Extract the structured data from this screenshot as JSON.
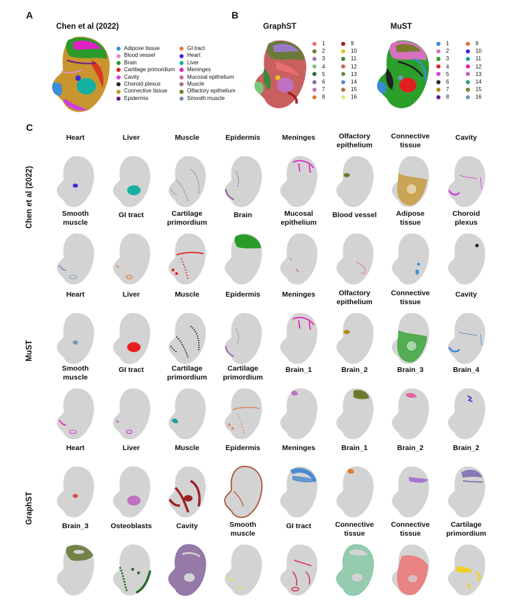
{
  "panels": {
    "a": {
      "letter": "A",
      "title": "Chen et al (2022)"
    },
    "b": {
      "letter": "B",
      "titles": [
        "GraphST",
        "MuST"
      ]
    },
    "c": {
      "letter": "C"
    }
  },
  "legend_a": {
    "col1": [
      {
        "label": "Adipose tissue",
        "color": "#3a8fd8"
      },
      {
        "label": "Blood vessel",
        "color": "#e58fc6"
      },
      {
        "label": "Brain",
        "color": "#2a9a2a"
      },
      {
        "label": "Cartilage primordium",
        "color": "#e02020"
      },
      {
        "label": "Cavity",
        "color": "#d040e0"
      },
      {
        "label": "Choroid plexus",
        "color": "#222222"
      },
      {
        "label": "Connective tissue",
        "color": "#c8952e"
      },
      {
        "label": "Epidermis",
        "color": "#6a1a8a"
      }
    ],
    "col2": [
      {
        "label": "GI tract",
        "color": "#e07a3a"
      },
      {
        "label": "Heart",
        "color": "#3a2ae0"
      },
      {
        "label": "Liver",
        "color": "#14b0a0"
      },
      {
        "label": "Meninges",
        "color": "#e020c0"
      },
      {
        "label": "Mucosal epithelium",
        "color": "#d060a8"
      },
      {
        "label": "Muscle",
        "color": "#a07080"
      },
      {
        "label": "Olfactory epithelium",
        "color": "#6a7a2a"
      },
      {
        "label": "Smooth muscle",
        "color": "#7a90b8"
      }
    ]
  },
  "legend_graphst": {
    "col1": [
      {
        "label": "1",
        "color": "#e87070"
      },
      {
        "label": "2",
        "color": "#6a7a3a"
      },
      {
        "label": "3",
        "color": "#9a7ac8"
      },
      {
        "label": "4",
        "color": "#7ac87a"
      },
      {
        "label": "5",
        "color": "#2a6a3a"
      },
      {
        "label": "6",
        "color": "#8a6aa0"
      },
      {
        "label": "7",
        "color": "#c070c0"
      },
      {
        "label": "8",
        "color": "#e07a2a"
      }
    ],
    "col2": [
      {
        "label": "9",
        "color": "#a02020"
      },
      {
        "label": "10",
        "color": "#e8c020"
      },
      {
        "label": "11",
        "color": "#3a8a3a"
      },
      {
        "label": "12",
        "color": "#c86060"
      },
      {
        "label": "13",
        "color": "#6a8a5a"
      },
      {
        "label": "14",
        "color": "#5a8ad0"
      },
      {
        "label": "15",
        "color": "#b07040"
      },
      {
        "label": "16",
        "color": "#e8e080"
      }
    ]
  },
  "legend_must": {
    "col1": [
      {
        "label": "1",
        "color": "#3a8ad8"
      },
      {
        "label": "2",
        "color": "#d870c0"
      },
      {
        "label": "3",
        "color": "#2aa02a"
      },
      {
        "label": "4",
        "color": "#e02020"
      },
      {
        "label": "5",
        "color": "#d040e0"
      },
      {
        "label": "6",
        "color": "#222222"
      },
      {
        "label": "7",
        "color": "#b08a20"
      },
      {
        "label": "8",
        "color": "#6a1a8a"
      }
    ],
    "col2": [
      {
        "label": "9",
        "color": "#e07030"
      },
      {
        "label": "10",
        "color": "#3a2ae0"
      },
      {
        "label": "11",
        "color": "#14a0a0"
      },
      {
        "label": "12",
        "color": "#e020b0"
      },
      {
        "label": "13",
        "color": "#c060b0"
      },
      {
        "label": "14",
        "color": "#2a9a8a"
      },
      {
        "label": "15",
        "color": "#7a7a2a"
      },
      {
        "label": "16",
        "color": "#7a90c0"
      }
    ]
  },
  "row_labels": [
    "Chen et al (2022)",
    "MuST",
    "GraphST"
  ],
  "grid": [
    [
      {
        "title": [
          "Heart"
        ],
        "color": "#3a2ae0",
        "region": "heart"
      },
      {
        "title": [
          "Liver"
        ],
        "color": "#14b0a0",
        "region": "liver"
      },
      {
        "title": [
          "Muscle"
        ],
        "color": "#b08090",
        "region": "muscle"
      },
      {
        "title": [
          "Epidermis"
        ],
        "color": "#6a1a8a",
        "region": "epidermis"
      },
      {
        "title": [
          "Meninges"
        ],
        "color": "#e020c0",
        "region": "meninges"
      },
      {
        "title": [
          "Olfactory",
          "epithelium"
        ],
        "color": "#6a7a2a",
        "region": "olfactory"
      },
      {
        "title": [
          "Connective",
          "tissue"
        ],
        "color": "#c8952e",
        "region": "connective"
      },
      {
        "title": [
          "Cavity"
        ],
        "color": "#d040e0",
        "region": "cavity"
      }
    ],
    [
      {
        "title": [
          "Smooth",
          "muscle"
        ],
        "color": "#7a90b8",
        "region": "smooth"
      },
      {
        "title": [
          "GI tract"
        ],
        "color": "#e07a3a",
        "region": "gi"
      },
      {
        "title": [
          "Cartilage",
          "primordium"
        ],
        "color": "#e02020",
        "region": "cartilage"
      },
      {
        "title": [
          "Brain"
        ],
        "color": "#2a9a2a",
        "region": "brain"
      },
      {
        "title": [
          "Mucosal",
          "epithelium"
        ],
        "color": "#d060a8",
        "region": "mucosal"
      },
      {
        "title": [
          "Blood vessel"
        ],
        "color": "#e58fc6",
        "region": "vessel"
      },
      {
        "title": [
          "Adipose",
          "tissue"
        ],
        "color": "#3a8fd8",
        "region": "adipose"
      },
      {
        "title": [
          "Choroid",
          "plexus"
        ],
        "color": "#222222",
        "region": "choroid"
      }
    ],
    [
      {
        "title": [
          "Heart"
        ],
        "color": "#7a90c0",
        "region": "heart"
      },
      {
        "title": [
          "Liver"
        ],
        "color": "#e82020",
        "region": "liver"
      },
      {
        "title": [
          "Muscle"
        ],
        "color": "#222222",
        "region": "muscle"
      },
      {
        "title": [
          "Epidermis"
        ],
        "color": "#8a3aa0",
        "region": "epidermis"
      },
      {
        "title": [
          "Meninges"
        ],
        "color": "#e020b0",
        "region": "meninges"
      },
      {
        "title": [
          "Olfactory",
          "epithelium"
        ],
        "color": "#b08a20",
        "region": "olfactory"
      },
      {
        "title": [
          "Connective",
          "tissue"
        ],
        "color": "#2aa02a",
        "region": "connective"
      },
      {
        "title": [
          "Cavity"
        ],
        "color": "#3a8ad8",
        "region": "cavity"
      }
    ],
    [
      {
        "title": [
          "Smooth",
          "muscle"
        ],
        "color": "#e020d0",
        "region": "smooth"
      },
      {
        "title": [
          "GI tract"
        ],
        "color": "#d040e0",
        "region": "gi"
      },
      {
        "title": [
          "Cartilage",
          "primordium"
        ],
        "color": "#14a0a0",
        "region": "cartilage_small"
      },
      {
        "title": [
          "Cartilage",
          "primordium"
        ],
        "color": "#e0906a",
        "region": "cartilage"
      },
      {
        "title": [
          "Brain_1"
        ],
        "color": "#c070c0",
        "region": "brain1"
      },
      {
        "title": [
          "Brain_2"
        ],
        "color": "#6a7a2a",
        "region": "brain2"
      },
      {
        "title": [
          "Brain_3"
        ],
        "color": "#e060a0",
        "region": "brain3"
      },
      {
        "title": [
          "Brain_4"
        ],
        "color": "#3a2ae0",
        "region": "brain4"
      }
    ],
    [
      {
        "title": [
          "Heart"
        ],
        "color": "#d84a4a",
        "region": "heart"
      },
      {
        "title": [
          "Liver"
        ],
        "color": "#c070c0",
        "region": "liver"
      },
      {
        "title": [
          "Muscle"
        ],
        "color": "#a02020",
        "region": "muscle_big"
      },
      {
        "title": [
          "Epidermis"
        ],
        "color": "#a85030",
        "region": "epidermis_full"
      },
      {
        "title": [
          "Meninges"
        ],
        "color": "#4a8ad0",
        "region": "meninges_big"
      },
      {
        "title": [
          "Brain_1"
        ],
        "color": "#e07a2a",
        "region": "brain1"
      },
      {
        "title": [
          "Brain_2"
        ],
        "color": "#a878d0",
        "region": "brain2b"
      },
      {
        "title": [
          "Brain_2"
        ],
        "color": "#7a6ab0",
        "region": "brain2c"
      }
    ],
    [
      {
        "title": [
          "Brain_3"
        ],
        "color": "#6a7a3a",
        "region": "brain_top"
      },
      {
        "title": [
          "Osteoblasts"
        ],
        "color": "#2a6a2a",
        "region": "osteo"
      },
      {
        "title": [
          "Cavity"
        ],
        "color": "#8a6aa0",
        "region": "cavity_big"
      },
      {
        "title": [
          "Smooth",
          "muscle"
        ],
        "color": "#d8e060",
        "region": "smooth"
      },
      {
        "title": [
          "GI tract"
        ],
        "color": "#d04060",
        "region": "gi_big"
      },
      {
        "title": [
          "Connective",
          "tissue"
        ],
        "color": "#7ac8a0",
        "region": "connective_big"
      },
      {
        "title": [
          "Connective",
          "tissue"
        ],
        "color": "#f07070",
        "region": "connective_big2"
      },
      {
        "title": [
          "Cartilage",
          "primordium"
        ],
        "color": "#f0d020",
        "region": "cartilage_yellow"
      }
    ]
  ]
}
